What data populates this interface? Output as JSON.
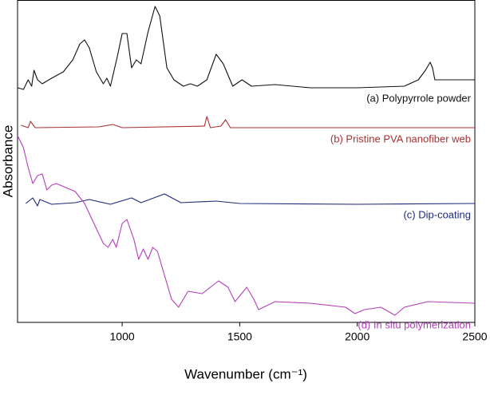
{
  "chart_data": {
    "type": "line",
    "x_label": "Wavenumber (cm⁻¹)",
    "y_label": "Absorbance",
    "xlim": [
      555,
      2500
    ],
    "xticks": [
      1000,
      1500,
      2000,
      2500
    ],
    "ylim": [
      0,
      404
    ],
    "series": [
      {
        "name": "(a) Polypyrrole powder",
        "color": "#111111",
        "x": [
          555,
          580,
          600,
          615,
          625,
          640,
          660,
          700,
          750,
          790,
          820,
          840,
          860,
          890,
          920,
          935,
          950,
          980,
          1000,
          1020,
          1040,
          1060,
          1080,
          1110,
          1140,
          1160,
          1190,
          1220,
          1260,
          1290,
          1320,
          1360,
          1400,
          1430,
          1470,
          1510,
          1550,
          1650,
          1800,
          2000,
          2200,
          2260,
          2290,
          2310,
          2320,
          2330,
          2350,
          2500
        ],
        "values": [
          294,
          292,
          304,
          296,
          316,
          304,
          299,
          306,
          314,
          329,
          349,
          354,
          344,
          314,
          299,
          306,
          296,
          334,
          362,
          362,
          319,
          329,
          324,
          364,
          396,
          384,
          319,
          304,
          296,
          299,
          296,
          304,
          336,
          324,
          296,
          304,
          296,
          298,
          294,
          294,
          296,
          304,
          316,
          326,
          319,
          304,
          304,
          304
        ]
      },
      {
        "name": "(b) Pristine PVA nanofiber web",
        "color": "#a83232",
        "x": [
          570,
          600,
          610,
          630,
          900,
          960,
          1000,
          1350,
          1360,
          1375,
          1420,
          1440,
          1460,
          2500
        ],
        "values": [
          247,
          244,
          252,
          244,
          245,
          248,
          244,
          246,
          258,
          244,
          246,
          254,
          244,
          244
        ]
      },
      {
        "name": "(c) Dip-coating",
        "color": "#1f2a7a",
        "x": [
          590,
          620,
          640,
          650,
          700,
          800,
          860,
          950,
          1040,
          1080,
          1180,
          1250,
          1400,
          1500,
          2000,
          2500
        ],
        "values": [
          149,
          156,
          146,
          154,
          148,
          150,
          154,
          148,
          156,
          150,
          161,
          150,
          152,
          149,
          148,
          149
        ]
      },
      {
        "name": "(d) In situ polymerization",
        "color": "#b23fb8",
        "x": [
          555,
          580,
          600,
          620,
          640,
          660,
          680,
          700,
          720,
          800,
          840,
          880,
          920,
          940,
          960,
          975,
          1000,
          1020,
          1050,
          1070,
          1090,
          1110,
          1130,
          1150,
          1180,
          1210,
          1240,
          1280,
          1340,
          1410,
          1450,
          1480,
          1530,
          1560,
          1580,
          1650,
          1800,
          1950,
          1990,
          2030,
          2100,
          2160,
          2200,
          2300,
          2500
        ],
        "values": [
          234,
          219,
          194,
          174,
          184,
          186,
          166,
          172,
          174,
          164,
          149,
          124,
          99,
          94,
          104,
          94,
          124,
          129,
          104,
          79,
          92,
          79,
          94,
          89,
          59,
          29,
          19,
          39,
          36,
          52,
          44,
          26,
          44,
          29,
          16,
          26,
          24,
          19,
          11,
          16,
          19,
          9,
          19,
          26,
          24
        ]
      }
    ]
  }
}
